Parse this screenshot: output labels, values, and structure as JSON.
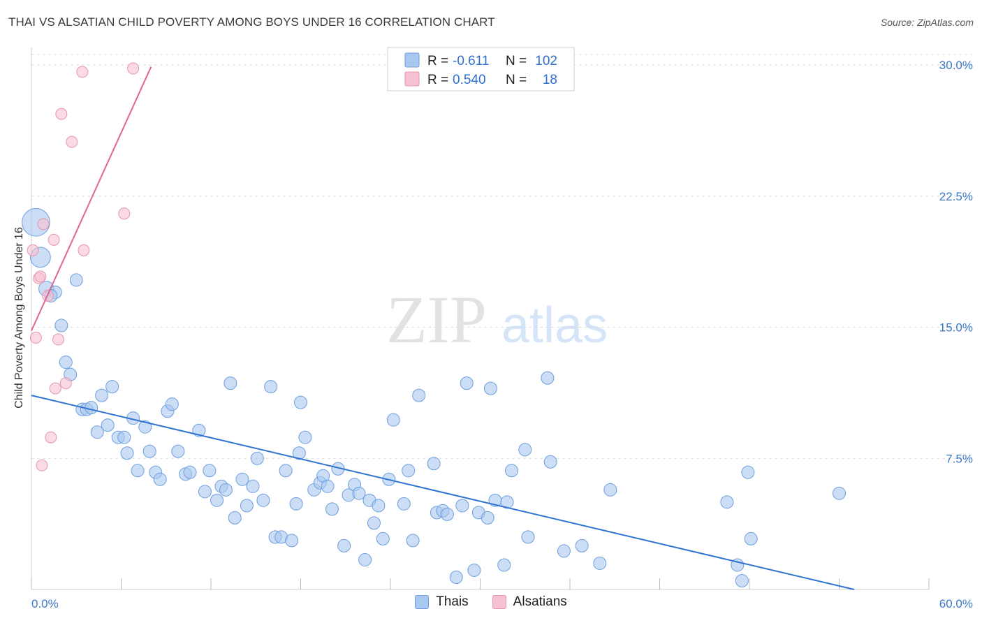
{
  "header": {
    "title": "THAI VS ALSATIAN CHILD POVERTY AMONG BOYS UNDER 16 CORRELATION CHART",
    "source": "Source: ZipAtlas.com"
  },
  "watermark": {
    "zip": "ZIP",
    "atlas": "atlas"
  },
  "colors": {
    "thais_fill": "#a9c8f0",
    "thais_stroke": "#6c9ede",
    "thais_line": "#2f74d0",
    "alsatians_fill": "#f6c1d1",
    "alsatians_stroke": "#e595b0",
    "alsatians_line": "#e0668f",
    "tick_text": "#3b78c9",
    "grid": "#dddddd"
  },
  "legend": {
    "rows": [
      {
        "r_label": "R =",
        "r_value": "-0.611",
        "n_label": "N =",
        "n_value": "102"
      },
      {
        "r_label": "R =",
        "r_value": "0.540",
        "n_label": "N =",
        "n_value": "18"
      }
    ]
  },
  "bottom_legend": {
    "thais": "Thais",
    "alsatians": "Alsatians"
  },
  "chart_data": {
    "type": "scatter",
    "title": "THAI VS ALSATIAN CHILD POVERTY AMONG BOYS UNDER 16 CORRELATION CHART",
    "xlabel": "",
    "ylabel": "Child Poverty Among Boys Under 16",
    "xlim": [
      0,
      60
    ],
    "ylim": [
      0,
      31
    ],
    "x_tick_labels": [
      "0.0%",
      "60.0%"
    ],
    "y_ticks": [
      7.5,
      15.0,
      22.5,
      30.0
    ],
    "y_tick_labels": [
      "7.5%",
      "15.0%",
      "22.5%",
      "30.0%"
    ],
    "grid": "horizontal dashed",
    "legend_position": "top-center",
    "series": [
      {
        "name": "Thais",
        "r": -0.611,
        "n": 102,
        "trend": {
          "x": [
            0,
            55
          ],
          "y": [
            11.1,
            0.0
          ]
        },
        "points": [
          [
            0.3,
            21.0,
            2.2
          ],
          [
            0.6,
            19.0,
            1.6
          ],
          [
            1.0,
            17.2,
            1.2
          ],
          [
            1.6,
            17.0,
            1.0
          ],
          [
            1.3,
            16.8,
            1.0
          ],
          [
            3.0,
            17.7,
            1.0
          ],
          [
            2.0,
            15.1,
            1.0
          ],
          [
            2.3,
            13.0,
            1.0
          ],
          [
            2.6,
            12.3,
            1.0
          ],
          [
            5.4,
            11.6,
            1.0
          ],
          [
            4.7,
            11.1,
            1.0
          ],
          [
            3.4,
            10.3,
            1.0
          ],
          [
            3.7,
            10.3,
            1.0
          ],
          [
            4.0,
            10.4,
            1.0
          ],
          [
            5.1,
            9.4,
            1.0
          ],
          [
            4.4,
            9.0,
            1.0
          ],
          [
            5.8,
            8.7,
            1.0
          ],
          [
            6.2,
            8.7,
            1.0
          ],
          [
            6.8,
            9.8,
            1.0
          ],
          [
            7.6,
            9.3,
            1.0
          ],
          [
            6.4,
            7.8,
            1.0
          ],
          [
            7.1,
            6.8,
            1.0
          ],
          [
            7.9,
            7.9,
            1.0
          ],
          [
            8.3,
            6.7,
            1.0
          ],
          [
            8.6,
            6.3,
            1.0
          ],
          [
            9.1,
            10.2,
            1.0
          ],
          [
            9.4,
            10.6,
            1.0
          ],
          [
            9.8,
            7.9,
            1.0
          ],
          [
            10.3,
            6.6,
            1.0
          ],
          [
            10.6,
            6.7,
            1.0
          ],
          [
            11.2,
            9.1,
            1.0
          ],
          [
            11.6,
            5.6,
            1.0
          ],
          [
            11.9,
            6.8,
            1.0
          ],
          [
            12.4,
            5.1,
            1.0
          ],
          [
            12.7,
            5.9,
            1.0
          ],
          [
            13.0,
            5.7,
            1.0
          ],
          [
            13.3,
            11.8,
            1.0
          ],
          [
            13.6,
            4.1,
            1.0
          ],
          [
            14.1,
            6.3,
            1.0
          ],
          [
            14.4,
            4.8,
            1.0
          ],
          [
            14.8,
            5.9,
            1.0
          ],
          [
            15.1,
            7.5,
            1.0
          ],
          [
            15.5,
            5.1,
            1.0
          ],
          [
            16.0,
            11.6,
            1.0
          ],
          [
            16.3,
            3.0,
            1.0
          ],
          [
            16.7,
            3.0,
            1.0
          ],
          [
            17.0,
            6.8,
            1.0
          ],
          [
            17.4,
            2.8,
            1.0
          ],
          [
            17.7,
            4.9,
            1.0
          ],
          [
            18.0,
            10.7,
            1.0
          ],
          [
            18.3,
            8.7,
            1.0
          ],
          [
            17.9,
            7.8,
            1.0
          ],
          [
            18.9,
            5.7,
            1.0
          ],
          [
            19.3,
            6.1,
            1.0
          ],
          [
            19.5,
            6.5,
            1.0
          ],
          [
            19.8,
            5.9,
            1.0
          ],
          [
            20.1,
            4.6,
            1.0
          ],
          [
            20.5,
            6.9,
            1.0
          ],
          [
            20.9,
            2.5,
            1.0
          ],
          [
            21.2,
            5.4,
            1.0
          ],
          [
            21.6,
            6.0,
            1.0
          ],
          [
            21.9,
            5.5,
            1.0
          ],
          [
            22.3,
            1.7,
            1.0
          ],
          [
            22.6,
            5.1,
            1.0
          ],
          [
            22.9,
            3.8,
            1.0
          ],
          [
            23.2,
            4.8,
            1.0
          ],
          [
            23.5,
            2.9,
            1.0
          ],
          [
            23.9,
            6.3,
            1.0
          ],
          [
            24.2,
            9.7,
            1.0
          ],
          [
            24.9,
            4.9,
            1.0
          ],
          [
            25.2,
            6.8,
            1.0
          ],
          [
            25.5,
            2.8,
            1.0
          ],
          [
            25.9,
            11.1,
            1.0
          ],
          [
            26.9,
            7.2,
            1.0
          ],
          [
            27.1,
            4.4,
            1.0
          ],
          [
            27.5,
            4.5,
            1.0
          ],
          [
            27.8,
            4.3,
            1.0
          ],
          [
            28.4,
            0.7,
            1.0
          ],
          [
            28.8,
            4.8,
            1.0
          ],
          [
            29.1,
            11.8,
            1.0
          ],
          [
            29.6,
            1.1,
            1.0
          ],
          [
            29.9,
            4.4,
            1.0
          ],
          [
            30.5,
            4.1,
            1.0
          ],
          [
            30.7,
            11.5,
            1.0
          ],
          [
            31.0,
            5.1,
            1.0
          ],
          [
            31.6,
            1.4,
            1.0
          ],
          [
            31.8,
            5.0,
            1.0
          ],
          [
            32.1,
            6.8,
            1.0
          ],
          [
            33.0,
            8.0,
            1.0
          ],
          [
            33.2,
            3.0,
            1.0
          ],
          [
            34.5,
            12.1,
            1.0
          ],
          [
            34.7,
            7.3,
            1.0
          ],
          [
            35.6,
            2.2,
            1.0
          ],
          [
            36.8,
            2.5,
            1.0
          ],
          [
            38.0,
            1.5,
            1.0
          ],
          [
            38.7,
            5.7,
            1.0
          ],
          [
            46.5,
            5.0,
            1.0
          ],
          [
            47.2,
            1.4,
            1.0
          ],
          [
            47.5,
            0.5,
            1.0
          ],
          [
            47.9,
            6.7,
            1.0
          ],
          [
            48.1,
            2.9,
            1.0
          ],
          [
            54.0,
            5.5,
            1.0
          ]
        ]
      },
      {
        "name": "Alsatians",
        "r": 0.54,
        "n": 18,
        "trend": {
          "x": [
            0,
            8
          ],
          "y": [
            14.8,
            29.9
          ]
        },
        "points": [
          [
            3.4,
            29.6
          ],
          [
            6.8,
            29.8
          ],
          [
            2.0,
            27.2
          ],
          [
            2.7,
            25.6
          ],
          [
            6.2,
            21.5
          ],
          [
            0.8,
            20.9
          ],
          [
            1.5,
            20.0
          ],
          [
            0.1,
            19.4
          ],
          [
            3.5,
            19.4
          ],
          [
            0.5,
            17.8
          ],
          [
            0.6,
            17.9
          ],
          [
            1.1,
            16.8
          ],
          [
            0.3,
            14.4
          ],
          [
            1.8,
            14.3
          ],
          [
            2.3,
            11.8
          ],
          [
            1.6,
            11.5
          ],
          [
            1.3,
            8.7
          ],
          [
            0.7,
            7.1
          ]
        ]
      }
    ]
  }
}
